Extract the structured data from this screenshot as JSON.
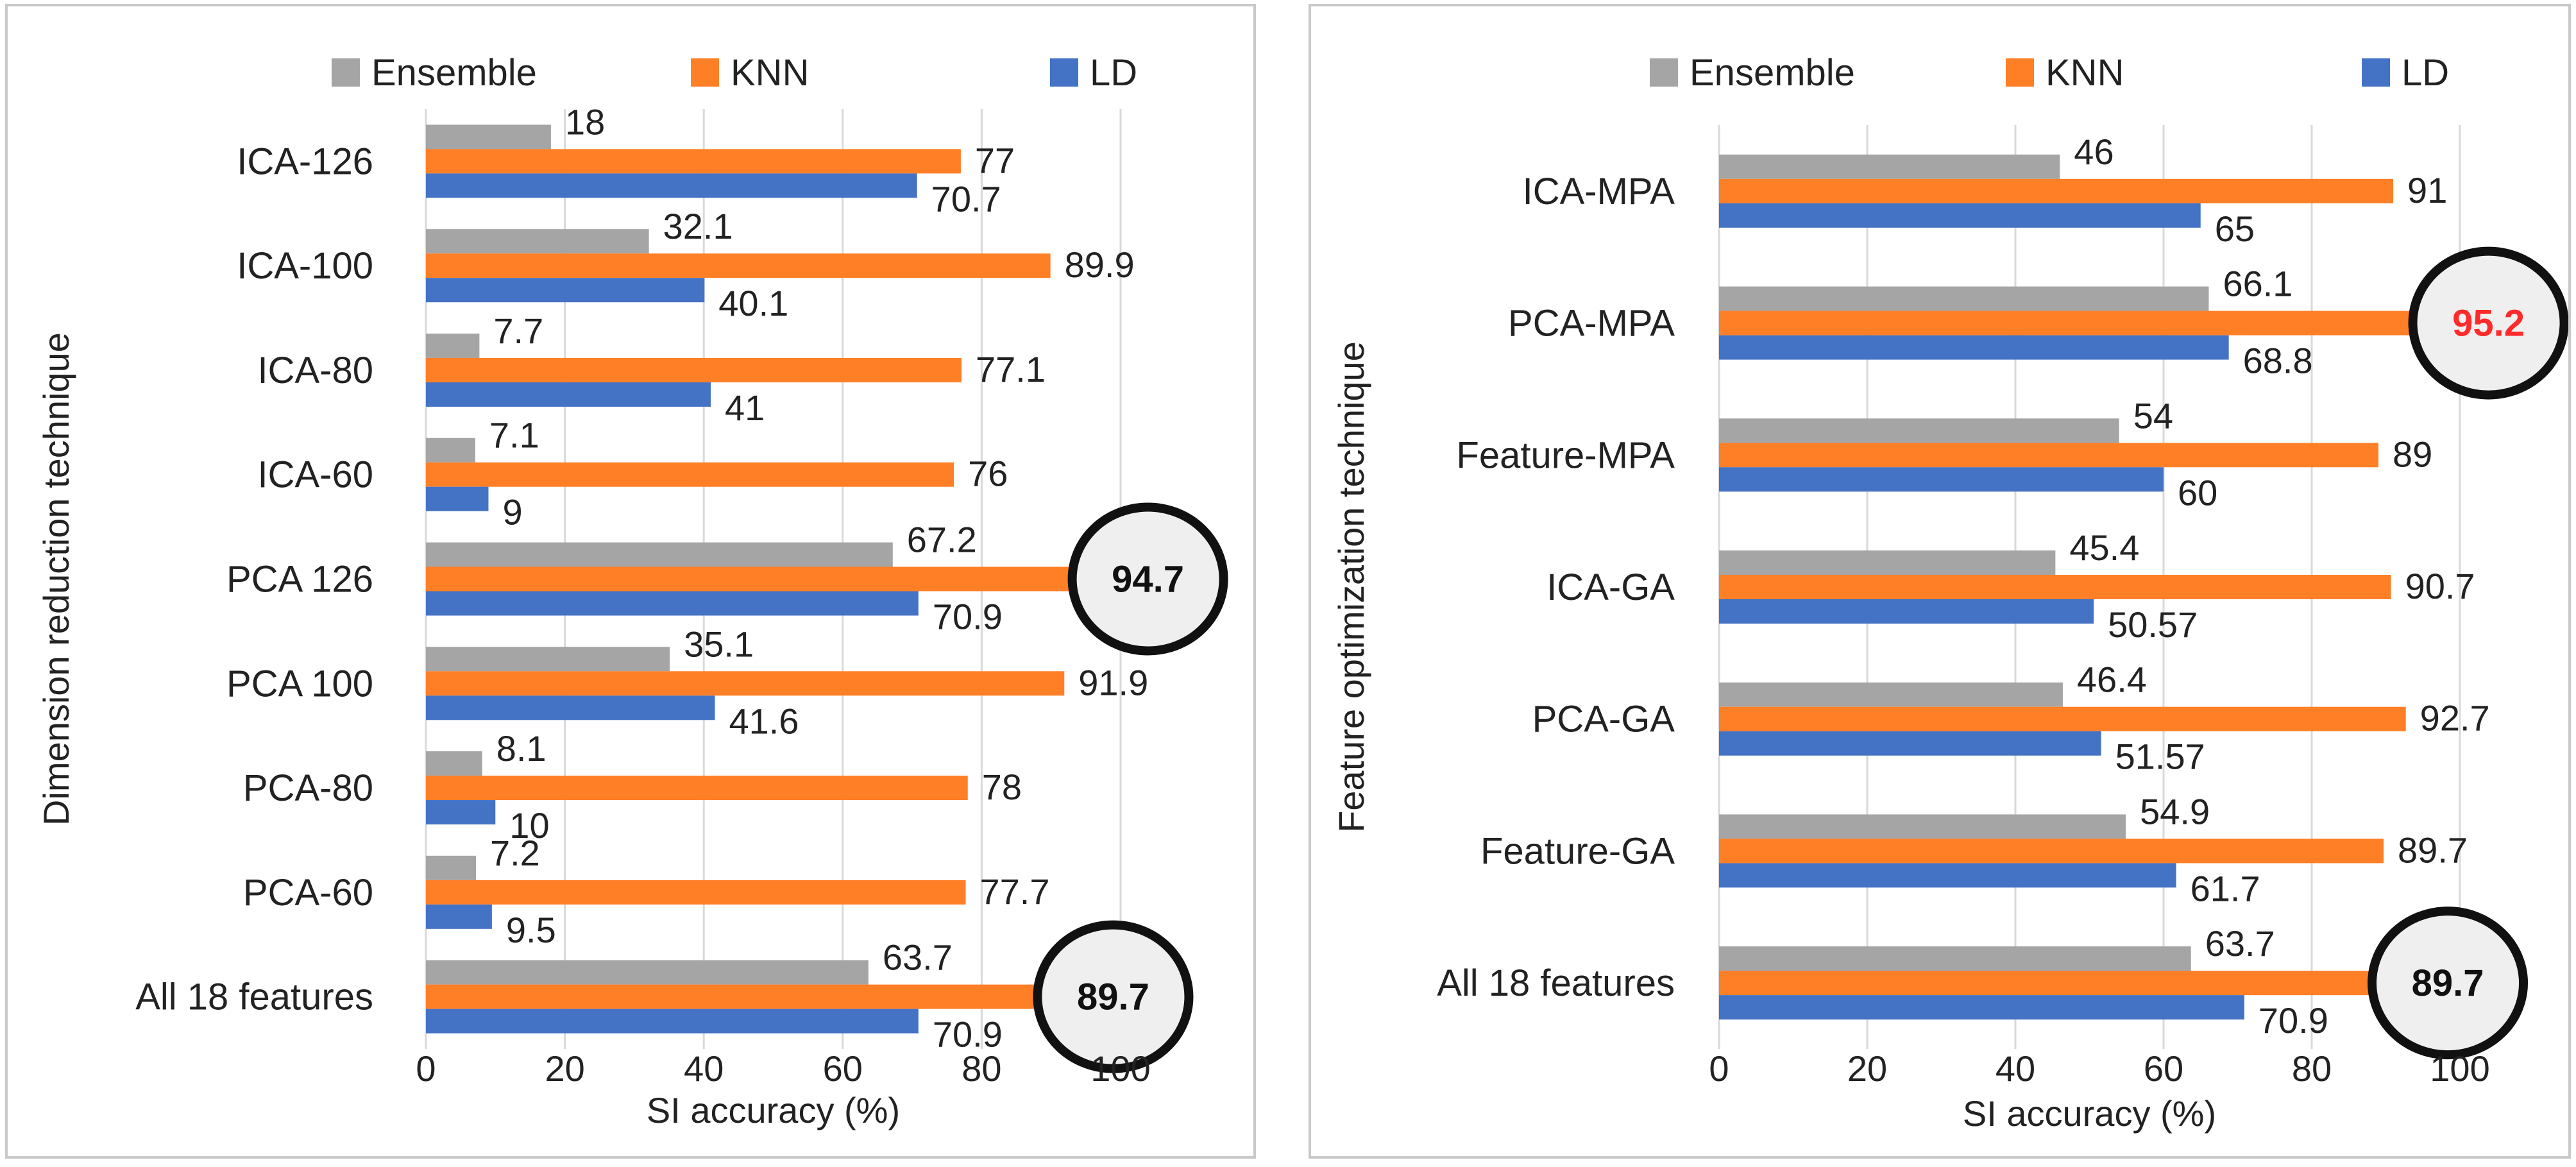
{
  "colors": {
    "Ensemble": "#a5a5a5",
    "KNN": "#ff7f27",
    "LD": "#4472c4",
    "highlight": "#ff2a2a",
    "circle_fill": "#efefef"
  },
  "chart_data": [
    {
      "type": "bar",
      "orientation": "horizontal",
      "legend": [
        "Ensemble",
        "KNN",
        "LD"
      ],
      "legend_position": "top",
      "xlabel": "SI accuracy (%)",
      "ylabel": "Dimension reduction technique",
      "xlim": [
        0,
        100
      ],
      "xticks": [
        "0",
        "20",
        "40",
        "60",
        "80",
        "100"
      ],
      "categories": [
        "ICA-126",
        "ICA-100",
        "ICA-80",
        "ICA-60",
        "PCA 126",
        "PCA 100",
        "PCA-80",
        "PCA-60",
        "All 18 features"
      ],
      "series": [
        {
          "name": "Ensemble",
          "values": [
            18,
            32.1,
            7.7,
            7.1,
            67.2,
            35.1,
            8.1,
            7.2,
            63.7
          ],
          "labels": [
            "18",
            "32.1",
            "7.7",
            "7.1",
            "67.2",
            "35.1",
            "8.1",
            "7.2",
            "63.7"
          ]
        },
        {
          "name": "KNN",
          "values": [
            77,
            89.9,
            77.1,
            76,
            94.7,
            91.9,
            78,
            77.7,
            89.7
          ],
          "labels": [
            "77",
            "89.9",
            "77.1",
            "76",
            "94.7",
            "91.9",
            "78",
            "77.7",
            "89.7"
          ]
        },
        {
          "name": "LD",
          "values": [
            70.7,
            40.1,
            41,
            9,
            70.9,
            41.6,
            10,
            9.5,
            70.9
          ],
          "labels": [
            "70.7",
            "40.1",
            "41",
            "9",
            "70.9",
            "41.6",
            "10",
            "9.5",
            "70.9"
          ]
        }
      ],
      "highlights": [
        {
          "category": "PCA 126",
          "series": "KNN",
          "label": "94.7",
          "red": false
        },
        {
          "category": "All 18 features",
          "series": "KNN",
          "label": "89.7",
          "red": false
        }
      ]
    },
    {
      "type": "bar",
      "orientation": "horizontal",
      "legend": [
        "Ensemble",
        "KNN",
        "LD"
      ],
      "legend_position": "top",
      "xlabel": "SI accuracy (%)",
      "ylabel": "Feature optimization technique",
      "xlim": [
        0,
        100
      ],
      "xticks": [
        "0",
        "20",
        "40",
        "60",
        "80",
        "100"
      ],
      "categories": [
        "ICA-MPA",
        "PCA-MPA",
        "Feature-MPA",
        "ICA-GA",
        "PCA-GA",
        "Feature-GA",
        "All 18 features"
      ],
      "series": [
        {
          "name": "Ensemble",
          "values": [
            46,
            66.1,
            54,
            45.4,
            46.4,
            54.9,
            63.7
          ],
          "labels": [
            "46",
            "66.1",
            "54",
            "45.4",
            "46.4",
            "54.9",
            "63.7"
          ]
        },
        {
          "name": "KNN",
          "values": [
            91,
            95.2,
            89,
            90.7,
            92.7,
            89.7,
            89.7
          ],
          "labels": [
            "91",
            "95.2",
            "89",
            "90.7",
            "92.7",
            "89.7",
            "89.7"
          ]
        },
        {
          "name": "LD",
          "values": [
            65,
            68.8,
            60,
            50.57,
            51.57,
            61.7,
            70.9
          ],
          "labels": [
            "65",
            "68.8",
            "60",
            "50.57",
            "51.57",
            "61.7",
            "70.9"
          ]
        }
      ],
      "highlights": [
        {
          "category": "PCA-MPA",
          "series": "KNN",
          "label": "95.2",
          "red": true
        },
        {
          "category": "All 18 features",
          "series": "KNN",
          "label": "89.7",
          "red": false
        }
      ]
    }
  ]
}
